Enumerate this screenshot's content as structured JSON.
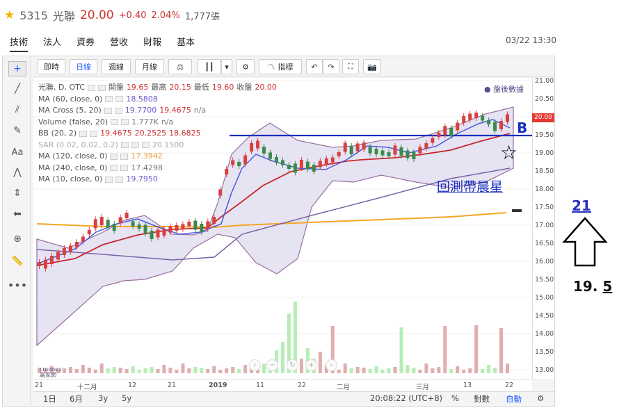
{
  "header": {
    "code": "5315",
    "name": "光聯",
    "price": "20.00",
    "change": "+0.40",
    "change_pct": "2.04%",
    "volume": "1,777張"
  },
  "tabs": [
    "技術",
    "法人",
    "資券",
    "營收",
    "財報",
    "基本"
  ],
  "datetime": "03/22 13:30",
  "toolbar": {
    "buttons": [
      "即時",
      "日線",
      "週線",
      "月線"
    ],
    "indicators_label": "指標"
  },
  "legend": {
    "symbol": "光聯, D, OTC",
    "open_label": "開盤",
    "open": "19.65",
    "high_label": "最高",
    "high": "20.15",
    "low_label": "最低",
    "low": "19.60",
    "close_label": "收盤",
    "close": "20.00",
    "ma60_label": "MA (60, close, 0)",
    "ma60_value": "18.5808",
    "macross_label": "MA Cross (5, 20)",
    "macross_v1": "19.7700",
    "macross_v2": "19.4675",
    "macross_v3": "n/a",
    "volume_label": "Volume (false, 20)",
    "volume_v1": "1.777K",
    "volume_v2": "n/a",
    "bb_label": "BB (20, 2)",
    "bb_v1": "19.4675",
    "bb_v2": "20.2525",
    "bb_v3": "18.6825",
    "sar_label": "SAR (0.02, 0.02, 0.2)",
    "sar_value": "20.1500",
    "ma120_label": "MA (120, close, 0)",
    "ma120_value": "17.3942",
    "ma240_label": "MA (240, close, 0)",
    "ma240_value": "17.4298",
    "ma10_label": "MA (10, close, 0)",
    "ma10_value": "19.7950"
  },
  "after_hours": "● 盤後數據",
  "y_ticks": [
    "21.00",
    "20.50",
    "20.00",
    "19.50",
    "19.00",
    "18.50",
    "18.00",
    "17.50",
    "17.00",
    "16.50",
    "16.00",
    "15.50",
    "15.00",
    "14.50",
    "14.00",
    "13.50",
    "13.00"
  ],
  "price_tag": "20.00",
  "x_ticks": [
    "21",
    "十二月",
    "12",
    "21",
    "2019",
    "11",
    "22",
    "二月",
    "三月",
    "13",
    "22"
  ],
  "bottom": {
    "ranges": [
      "1日",
      "6月",
      "3y",
      "5y"
    ],
    "clock": "20:08:22 (UTC+8)",
    "pct": "%",
    "log": "對數",
    "auto": "自動"
  },
  "logo_text": "cmoney 贏家網",
  "annotations": {
    "b_label": "B",
    "morning_star": "回測帶晨星",
    "star_symbol": "☆",
    "target": "21",
    "support_prefix": "19.",
    "support_suffix": "5"
  },
  "colors": {
    "up": "#c33333",
    "down": "#2e7d32",
    "ma_blue": "#4a5be0",
    "ma_red": "#c62828",
    "ma_orange": "#f5a623",
    "bb_fill": "#e6e3f3",
    "annotation_blue": "#1a2fbf"
  }
}
